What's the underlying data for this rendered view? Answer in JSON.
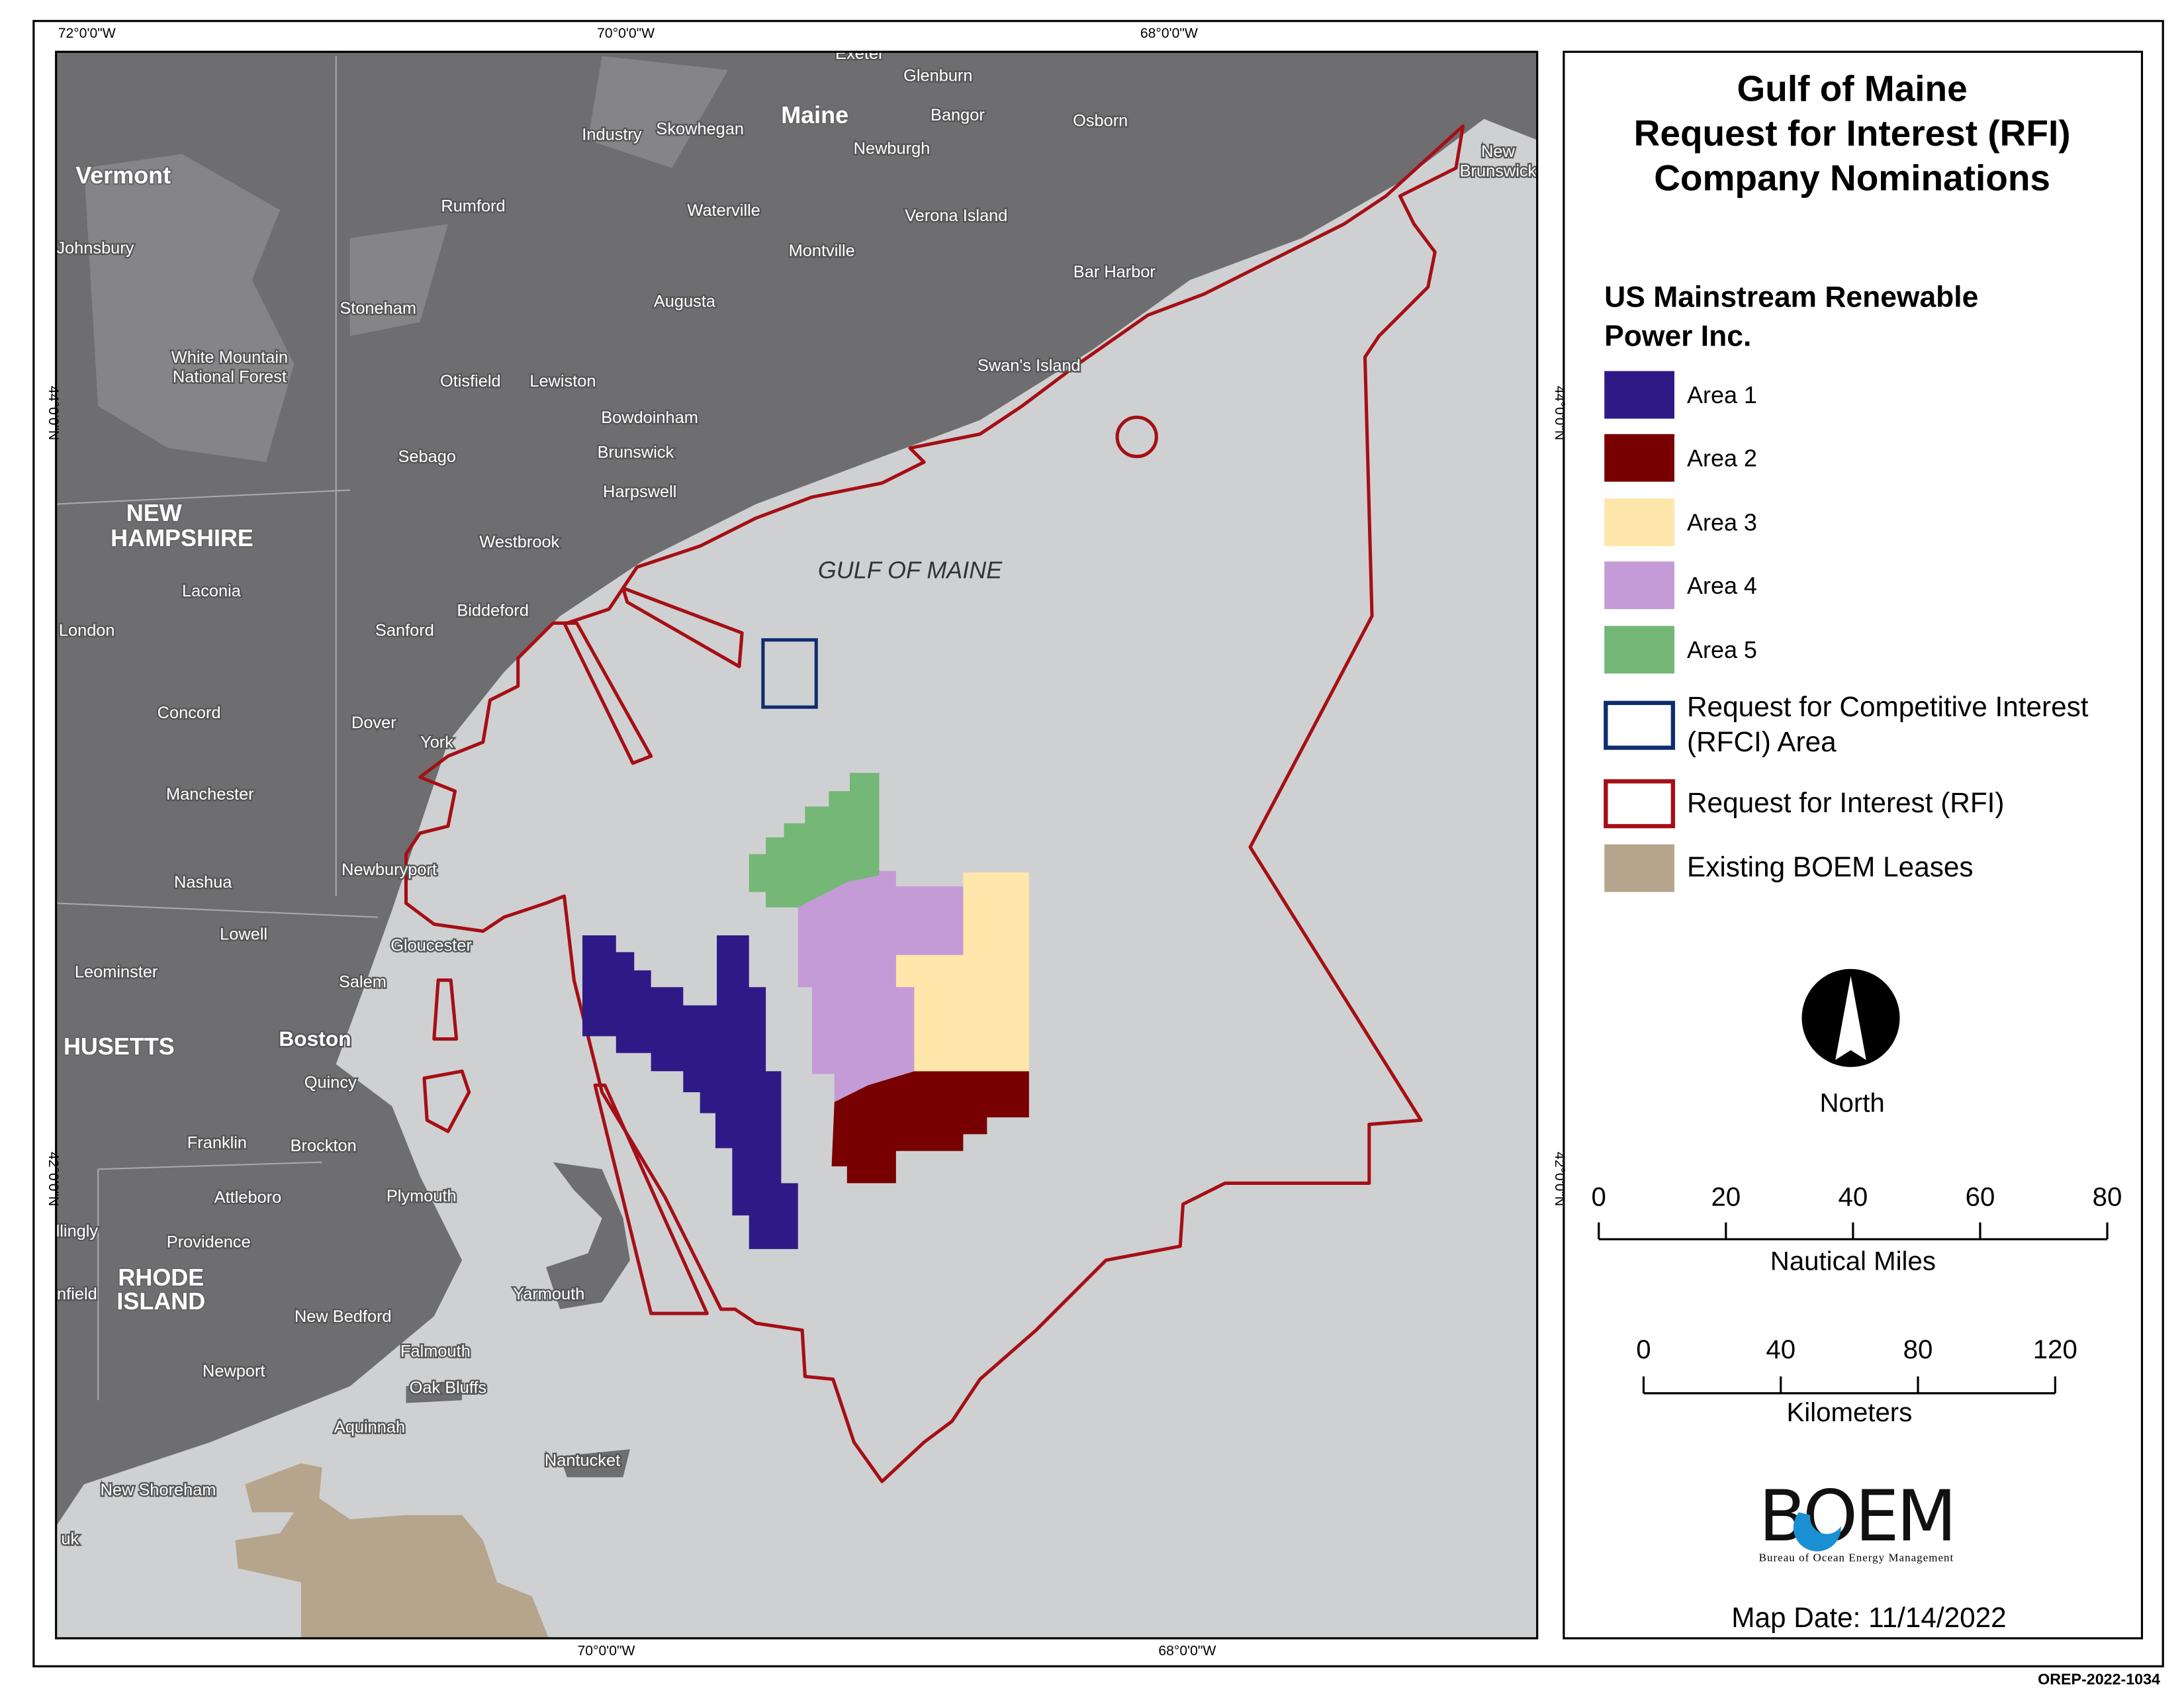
{
  "header": {
    "title": [
      "Gulf of Maine",
      "Request for Interest (RFI)",
      "Company Nominations"
    ]
  },
  "legend": {
    "company": [
      "US Mainstream Renewable",
      "Power Inc."
    ],
    "items": [
      {
        "label": [
          "Area 1"
        ],
        "color": "#2e1a87"
      },
      {
        "label": [
          "Area 2"
        ],
        "color": "#780000"
      },
      {
        "label": [
          "Area 3"
        ],
        "color": "#ffe6aa"
      },
      {
        "label": [
          "Area 4"
        ],
        "color": "#c49bd6"
      },
      {
        "label": [
          "Area 5"
        ],
        "color": "#74b777"
      },
      {
        "label": [
          "Request for Competitive Interest",
          "(RFCI) Area"
        ],
        "color": "#0f2d6e",
        "outline": true
      },
      {
        "label": [
          "Request for Interest (RFI)"
        ],
        "color": "#a50f15",
        "outline": true
      },
      {
        "label": [
          "Existing BOEM Leases"
        ],
        "color": "#b5a58c"
      }
    ]
  },
  "north_label": "North",
  "scale_bars": [
    {
      "ticks": [
        0,
        20,
        40,
        60,
        80
      ],
      "unit": "Nautical Miles"
    },
    {
      "ticks": [
        0,
        40,
        80,
        120
      ],
      "unit": "Kilometers"
    }
  ],
  "agency": {
    "name": "BOEM",
    "full": "Bureau of Ocean Energy Management"
  },
  "map_date": "Map Date: 11/14/2022",
  "doc_id": "OREP-2022-1034",
  "graticule": {
    "top": [
      "72°0'0\"W",
      "70°0'0\"W",
      "68°0'0\"W"
    ],
    "bottom": [
      "70°0'0\"W",
      "68°0'0\"W"
    ],
    "left": [
      "44°0'0\"N",
      "42°0'0\"N"
    ],
    "right": [
      "44°0'0\"N",
      "42°0'0\"N"
    ]
  },
  "map_labels": {
    "water": "GULF OF MAINE",
    "places": [
      "Vermont",
      "Maine",
      "NEW",
      "HAMPSHIRE",
      "HUSETTS",
      "RHODE",
      "ISLAND",
      "New",
      "Brunswick",
      "Exeter",
      "Glenburn",
      "Industry",
      "Skowhegan",
      "Bangor",
      "Osborn",
      "Newburgh",
      "Rumford",
      "Waterville",
      "Verona Island",
      "Johnsbury",
      "Montville",
      "Bar Harbor",
      "Stoneham",
      "Augusta",
      "White Mountain",
      "National Forest",
      "Swan's Island",
      "Otisfield",
      "Lewiston",
      "Bowdoinham",
      "Sebago",
      "Brunswick",
      "Harpswell",
      "Westbrook",
      "Laconia",
      "Biddeford",
      "London",
      "Sanford",
      "Concord",
      "Dover",
      "York",
      "Manchester",
      "Newburyport",
      "Nashua",
      "Lowell",
      "Gloucester",
      "Leominster",
      "Salem",
      "Boston",
      "Quincy",
      "Franklin",
      "Brockton",
      "Attleboro",
      "Plymouth",
      "llingly",
      "Providence",
      "Yarmouth",
      "nfield",
      "New Bedford",
      "Falmouth",
      "Newport",
      "Oak Bluffs",
      "Aquinnah",
      "Nantucket",
      "New Shoreham",
      "uk"
    ]
  }
}
